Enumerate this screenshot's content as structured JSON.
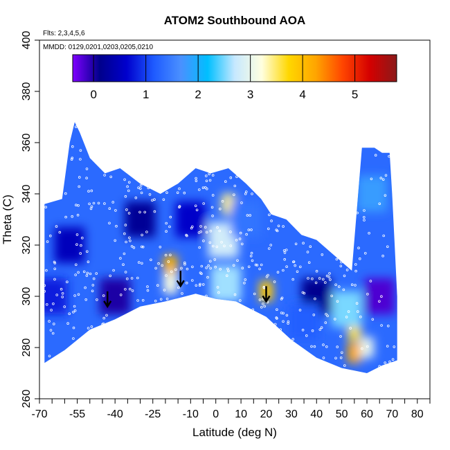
{
  "chart_data": {
    "type": "heatmap",
    "title": "ATOM2 Southbound AOA",
    "notes": [
      "Flts: 2,3,4,5,6",
      "MMDD: 0129,0201,0203,0205,0210"
    ],
    "xlabel": "Latitude (deg N)",
    "ylabel": "Theta (C)",
    "xlim": [
      -70,
      85
    ],
    "ylim": [
      260,
      400
    ],
    "x_tick_labels": [
      "-70",
      "-55",
      "-40",
      "-25",
      "-10",
      "0",
      "10",
      "20",
      "30",
      "40",
      "50",
      "60",
      "70",
      "80"
    ],
    "x_tick_values": [
      -70,
      -55,
      -40,
      -25,
      -10,
      0,
      10,
      20,
      30,
      40,
      50,
      60,
      70,
      80
    ],
    "x_minor_ticks": [
      -65,
      -60,
      -50,
      -45,
      -35,
      -30,
      -20,
      -15,
      -5,
      5,
      15,
      25,
      35,
      45,
      55,
      65,
      75,
      85
    ],
    "y_ticks": [
      260,
      280,
      300,
      320,
      340,
      360,
      380,
      400
    ],
    "colorbar": {
      "range": [
        -0.4,
        5.8
      ],
      "ticks": [
        0,
        1,
        2,
        3,
        4,
        5
      ],
      "colors": [
        "#7f00ff",
        "#00008b",
        "#0000cd",
        "#1e5aff",
        "#4a90ff",
        "#00bfff",
        "#c6e8ff",
        "#ffffe0",
        "#ffd700",
        "#ffa500",
        "#ff4500",
        "#d40000",
        "#8b1a1a"
      ]
    },
    "domain": {
      "top_boundary": [
        [
          -68,
          336
        ],
        [
          -61,
          338
        ],
        [
          -58,
          360
        ],
        [
          -56,
          368
        ],
        [
          -54,
          364
        ],
        [
          -50,
          354
        ],
        [
          -44,
          348
        ],
        [
          -38,
          350
        ],
        [
          -30,
          344
        ],
        [
          -22,
          340
        ],
        [
          -15,
          344
        ],
        [
          -8,
          350
        ],
        [
          -2,
          348
        ],
        [
          5,
          350
        ],
        [
          12,
          344
        ],
        [
          18,
          338
        ],
        [
          22,
          332
        ],
        [
          28,
          330
        ],
        [
          34,
          324
        ],
        [
          40,
          322
        ],
        [
          47,
          316
        ],
        [
          54,
          310
        ],
        [
          58,
          358
        ],
        [
          63,
          358
        ],
        [
          66,
          356
        ],
        [
          69,
          356
        ],
        [
          70,
          340
        ],
        [
          71,
          320
        ],
        [
          72,
          300
        ],
        [
          72,
          275
        ]
      ],
      "bottom_boundary": [
        [
          -68,
          274
        ],
        [
          -60,
          279
        ],
        [
          -50,
          287
        ],
        [
          -40,
          291
        ],
        [
          -30,
          296
        ],
        [
          -20,
          298
        ],
        [
          -8,
          301
        ],
        [
          0,
          299
        ],
        [
          8,
          298
        ],
        [
          20,
          292
        ],
        [
          30,
          283
        ],
        [
          40,
          276
        ],
        [
          50,
          272
        ],
        [
          60,
          270
        ],
        [
          66,
          273
        ],
        [
          72,
          275
        ]
      ]
    },
    "series": [
      {
        "x": 5,
        "y": 336,
        "value": 3.4
      },
      {
        "x": 3,
        "y": 322,
        "value": 2.8
      },
      {
        "x": 4,
        "y": 305,
        "value": 2.6
      },
      {
        "x": -18,
        "y": 312,
        "value": 4.1
      },
      {
        "x": -18,
        "y": 305,
        "value": 3.2
      },
      {
        "x": 20,
        "y": 302,
        "value": 3.9
      },
      {
        "x": 55,
        "y": 297,
        "value": 4.8
      },
      {
        "x": 55,
        "y": 287,
        "value": 3.6
      },
      {
        "x": 55,
        "y": 278,
        "value": 4.2
      },
      {
        "x": 52,
        "y": 295,
        "value": 2.5
      },
      {
        "x": 60,
        "y": 280,
        "value": 3.0
      },
      {
        "x": -40,
        "y": 300,
        "value": 0.0
      },
      {
        "x": -30,
        "y": 330,
        "value": 0.2
      },
      {
        "x": -58,
        "y": 320,
        "value": 0.5
      },
      {
        "x": -65,
        "y": 300,
        "value": 0.8
      },
      {
        "x": 40,
        "y": 300,
        "value": 0.1
      },
      {
        "x": 35,
        "y": 290,
        "value": 1.2
      },
      {
        "x": 65,
        "y": 300,
        "value": -0.2
      },
      {
        "x": 62,
        "y": 340,
        "value": 1.8
      },
      {
        "x": -10,
        "y": 330,
        "value": 0.6
      },
      {
        "x": 12,
        "y": 330,
        "value": 1.4
      }
    ],
    "arrows": [
      [
        -43,
        296
      ],
      [
        -14,
        304
      ],
      [
        20,
        298
      ]
    ]
  }
}
